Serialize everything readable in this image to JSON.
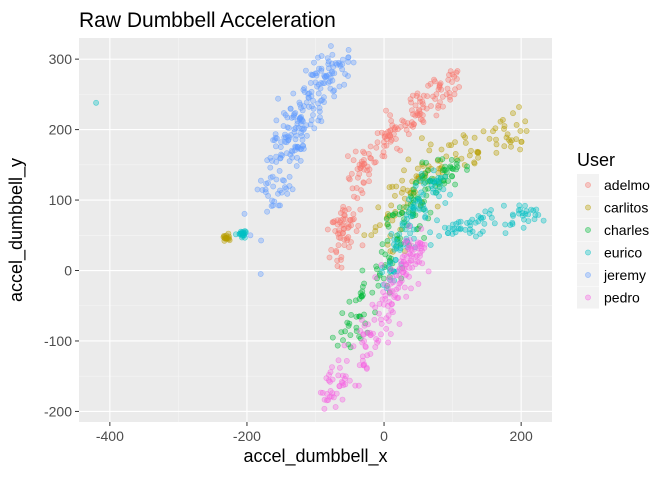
{
  "chart_data": {
    "type": "scatter",
    "title": "Raw Dumbbell Acceleration",
    "xlabel": "accel_dumbbell_x",
    "ylabel": "accel_dumbbell_y",
    "xlim": [
      -445,
      245
    ],
    "ylim": [
      -215,
      330
    ],
    "x_ticks": [
      -400,
      -200,
      0,
      200
    ],
    "y_ticks": [
      -200,
      -100,
      0,
      100,
      200,
      300
    ],
    "grid": true,
    "legend_position": "right",
    "legend_title": "User",
    "series": [
      {
        "name": "adelmo",
        "color": "#F8766D",
        "clusters": [
          {
            "count": 170,
            "path": [
              [
                -55,
                40
              ],
              [
                -50,
                90
              ],
              [
                -40,
                140
              ],
              [
                -25,
                160
              ],
              [
                0,
                180
              ],
              [
                20,
                200
              ],
              [
                40,
                215
              ],
              [
                60,
                235
              ],
              [
                80,
                255
              ],
              [
                110,
                272
              ]
            ],
            "spread": 11
          },
          {
            "count": 40,
            "path": [
              [
                -65,
                10
              ],
              [
                -60,
                50
              ],
              [
                -55,
                80
              ]
            ],
            "spread": 8
          }
        ]
      },
      {
        "name": "carlitos",
        "color": "#B79F00",
        "clusters": [
          {
            "count": 120,
            "path": [
              [
                -5,
                30
              ],
              [
                10,
                80
              ],
              [
                30,
                110
              ],
              [
                50,
                130
              ],
              [
                70,
                150
              ],
              [
                100,
                170
              ],
              [
                140,
                180
              ],
              [
                180,
                190
              ],
              [
                200,
                195
              ]
            ],
            "spread": 14
          },
          {
            "count": 18,
            "path": [
              [
                -233,
                47
              ],
              [
                -228,
                46
              ]
            ],
            "spread": 2
          }
        ]
      },
      {
        "name": "charles",
        "color": "#00BA38",
        "clusters": [
          {
            "count": 160,
            "path": [
              [
                -55,
                -110
              ],
              [
                -40,
                -70
              ],
              [
                -20,
                -30
              ],
              [
                0,
                10
              ],
              [
                20,
                50
              ],
              [
                40,
                90
              ],
              [
                60,
                120
              ],
              [
                80,
                140
              ],
              [
                100,
                145
              ]
            ],
            "spread": 12
          }
        ]
      },
      {
        "name": "eurico",
        "color": "#00BFC4",
        "clusters": [
          {
            "count": 90,
            "path": [
              [
                0,
                -20
              ],
              [
                20,
                30
              ],
              [
                40,
                70
              ],
              [
                60,
                110
              ],
              [
                80,
                130
              ]
            ],
            "spread": 10
          },
          {
            "count": 70,
            "path": [
              [
                70,
                50
              ],
              [
                110,
                60
              ],
              [
                150,
                70
              ],
              [
                180,
                75
              ],
              [
                220,
                80
              ]
            ],
            "spread": 8
          },
          {
            "count": 20,
            "path": [
              [
                -210,
                50
              ],
              [
                -200,
                53
              ]
            ],
            "spread": 3
          }
        ],
        "outliers": [
          [
            -420,
            238
          ]
        ]
      },
      {
        "name": "jeremy",
        "color": "#619CFF",
        "clusters": [
          {
            "count": 220,
            "path": [
              [
                -170,
                90
              ],
              [
                -150,
                140
              ],
              [
                -140,
                175
              ],
              [
                -130,
                200
              ],
              [
                -120,
                230
              ],
              [
                -100,
                260
              ],
              [
                -80,
                285
              ],
              [
                -60,
                300
              ]
            ],
            "spread": 14
          }
        ],
        "outliers": [
          [
            -180,
            -5
          ],
          [
            -195,
            50
          ]
        ]
      },
      {
        "name": "pedro",
        "color": "#F564E3",
        "clusters": [
          {
            "count": 180,
            "path": [
              [
                -80,
                -185
              ],
              [
                -60,
                -150
              ],
              [
                -30,
                -110
              ],
              [
                -5,
                -70
              ],
              [
                10,
                -40
              ],
              [
                25,
                -10
              ],
              [
                40,
                20
              ],
              [
                45,
                30
              ]
            ],
            "spread": 13
          }
        ]
      }
    ]
  }
}
